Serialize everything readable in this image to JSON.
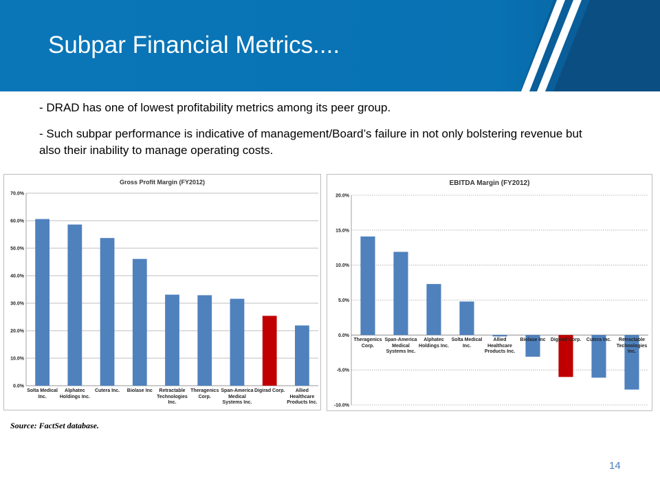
{
  "title": "Subpar Financial Metrics....",
  "bullets": [
    "- DRAD has one of lowest profitability metrics among its peer group.",
    "- Such subpar performance is indicative of management/Board’s failure in not only bolstering revenue but also their inability to manage operating costs."
  ],
  "source": "Source: FactSet database.",
  "page_number": "14",
  "chart_data": [
    {
      "type": "bar",
      "title": "Gross Profit Margin (FY2012)",
      "categories": [
        "Solta Medical Inc.",
        "Alphatec Holdings Inc.",
        "Cutera Inc.",
        "Biolase Inc",
        "Retractable Technologies Inc.",
        "Theragenics Corp.",
        "Span-America Medical Systems Inc.",
        "Digirad Corp.",
        "Allied Healthcare Products Inc."
      ],
      "values": [
        60.6,
        58.6,
        53.7,
        46.1,
        33.1,
        32.9,
        31.6,
        25.4,
        21.9
      ],
      "colors": [
        "#4f81bd",
        "#4f81bd",
        "#4f81bd",
        "#4f81bd",
        "#4f81bd",
        "#4f81bd",
        "#4f81bd",
        "#c00000",
        "#4f81bd"
      ],
      "ylim": [
        0,
        70
      ],
      "yticks": [
        {
          "value": 0,
          "label": "0.0%"
        },
        {
          "value": 10,
          "label": "10.0%"
        },
        {
          "value": 20,
          "label": "20.0%"
        },
        {
          "value": 30,
          "label": "30.0%"
        },
        {
          "value": 40,
          "label": "40.0%"
        },
        {
          "value": 50,
          "label": "50.0%"
        },
        {
          "value": 60,
          "label": "60.0%"
        },
        {
          "value": 70,
          "label": "70.0%"
        }
      ],
      "grid": true
    },
    {
      "type": "bar",
      "title": "EBITDA Margin (FY2012)",
      "categories": [
        "Theragenics Corp.",
        "Span-America Medical Systems Inc.",
        "Alphatec Holdings Inc.",
        "Solta Medical Inc.",
        "Allied Healthcare Products Inc.",
        "Biolase Inc",
        "Digirad Corp.",
        "Cutera Inc.",
        "Retractable Technologies Inc."
      ],
      "values": [
        14.1,
        11.9,
        7.3,
        4.8,
        -0.2,
        -3.1,
        -6.0,
        -6.1,
        -7.8
      ],
      "colors": [
        "#4f81bd",
        "#4f81bd",
        "#4f81bd",
        "#4f81bd",
        "#4f81bd",
        "#4f81bd",
        "#c00000",
        "#4f81bd",
        "#4f81bd"
      ],
      "ylim": [
        -10,
        20
      ],
      "yticks": [
        {
          "value": -10,
          "label": "-10.0%"
        },
        {
          "value": -5,
          "label": "-5.0%"
        },
        {
          "value": 0,
          "label": "0.0%"
        },
        {
          "value": 5,
          "label": "5.0%"
        },
        {
          "value": 10,
          "label": "10.0%"
        },
        {
          "value": 15,
          "label": "15.0%"
        },
        {
          "value": 20,
          "label": "20.0%"
        }
      ],
      "grid": true
    }
  ]
}
